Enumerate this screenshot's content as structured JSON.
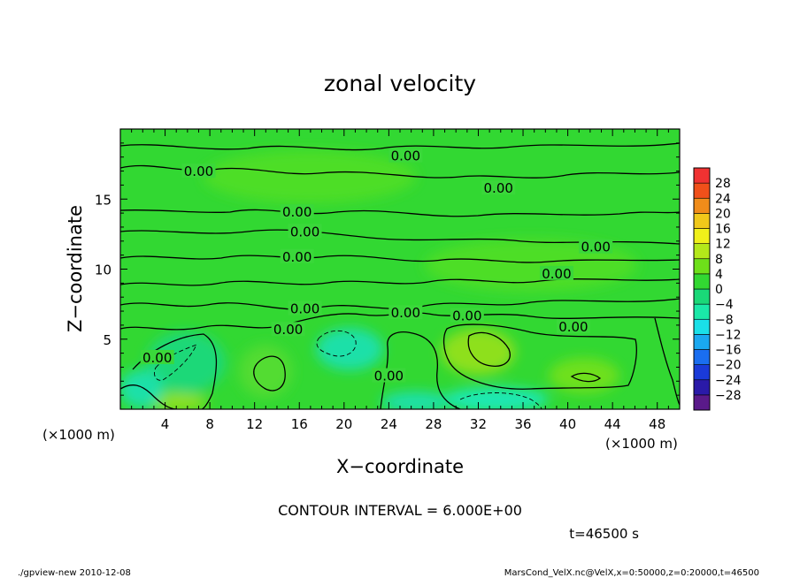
{
  "chart_data": {
    "type": "heatmap",
    "title": "zonal velocity",
    "xlabel": "X−coordinate",
    "ylabel": "Z−coordinate",
    "x_unit": "(×1000 m)",
    "y_unit": "(×1000 m)",
    "xlim": [
      0,
      50
    ],
    "ylim": [
      0,
      20
    ],
    "x_ticks": [
      4,
      8,
      12,
      16,
      20,
      24,
      28,
      32,
      36,
      40,
      44,
      48
    ],
    "x_tick_labels": [
      "4",
      "8",
      "12",
      "16",
      "20",
      "24",
      "28",
      "32",
      "36",
      "40",
      "44",
      "48"
    ],
    "y_ticks": [
      5,
      10,
      15
    ],
    "y_tick_labels": [
      "5",
      "10",
      "15"
    ],
    "colorbar": {
      "levels": [
        -32,
        -28,
        -24,
        -20,
        -16,
        -12,
        -8,
        -4,
        0,
        4,
        8,
        12,
        16,
        20,
        24,
        28,
        32
      ],
      "tick_labels": [
        "28",
        "24",
        "20",
        "16",
        "12",
        "8",
        "4",
        "0",
        "−4",
        "−8",
        "−12",
        "−16",
        "−20",
        "−24",
        "−28"
      ],
      "colors": [
        "#5a1a8a",
        "#2a1aa8",
        "#1a3ad8",
        "#1a6ef0",
        "#1aa8f0",
        "#1ae0e8",
        "#1ae8a8",
        "#1ad878",
        "#32d832",
        "#6ee01a",
        "#b4e81a",
        "#f0f01a",
        "#f0c81a",
        "#f08c1a",
        "#f0501a",
        "#f03232",
        "#f08c8c"
      ]
    },
    "contour_labels": [
      {
        "text": "0.00",
        "x": 25.5,
        "z": 18.0
      },
      {
        "text": "0.00",
        "x": 7.0,
        "z": 16.9
      },
      {
        "text": "0.00",
        "x": 33.8,
        "z": 15.7
      },
      {
        "text": "0.00",
        "x": 15.8,
        "z": 14.0
      },
      {
        "text": "0.00",
        "x": 16.5,
        "z": 12.6
      },
      {
        "text": "0.00",
        "x": 42.5,
        "z": 11.5
      },
      {
        "text": "0.00",
        "x": 15.8,
        "z": 10.8
      },
      {
        "text": "0.00",
        "x": 39.0,
        "z": 9.6
      },
      {
        "text": "0.00",
        "x": 16.5,
        "z": 7.1
      },
      {
        "text": "0.00",
        "x": 25.5,
        "z": 6.8
      },
      {
        "text": "0.00",
        "x": 31.0,
        "z": 6.6
      },
      {
        "text": "0.00",
        "x": 40.5,
        "z": 5.8
      },
      {
        "text": "0.00",
        "x": 15.0,
        "z": 5.6
      },
      {
        "text": "0.00",
        "x": 3.3,
        "z": 3.6
      },
      {
        "text": "0.00",
        "x": 24.0,
        "z": 2.3
      }
    ]
  },
  "annotations": {
    "contour_interval": "CONTOUR INTERVAL = 6.000E+00",
    "time": "t=46500 s",
    "footer_left": "./gpview-new  2010-12-08",
    "footer_right": "MarsCond_VelX.nc@VelX,x=0:50000,z=0:20000,t=46500"
  }
}
